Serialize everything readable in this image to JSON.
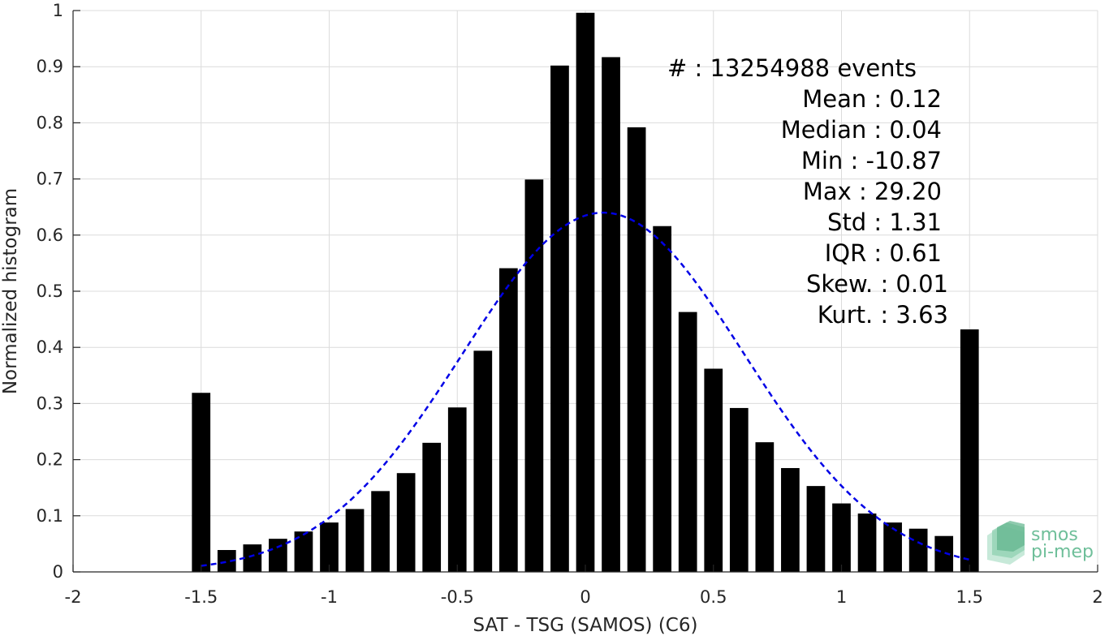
{
  "colors": {
    "bars": "#000000",
    "fit": "#0000e6",
    "grid": "#dcdcdc",
    "axis": "#262626",
    "logo": "#6fbf9a"
  },
  "chart_data": {
    "type": "bar",
    "xlabel": "SAT - TSG (SAMOS) (C6)",
    "ylabel": "Normalized histogram",
    "xlim": [
      -2,
      2
    ],
    "ylim": [
      0,
      1
    ],
    "grid": true,
    "xticks": [
      "-2",
      "-1.5",
      "-1",
      "-0.5",
      "0",
      "0.5",
      "1",
      "1.5",
      "2"
    ],
    "yticks": [
      "0",
      "0.1",
      "0.2",
      "0.3",
      "0.4",
      "0.5",
      "0.6",
      "0.7",
      "0.8",
      "0.9",
      "1"
    ],
    "x": [
      -1.5,
      -1.4,
      -1.3,
      -1.2,
      -1.1,
      -1.0,
      -0.9,
      -0.8,
      -0.7,
      -0.6,
      -0.5,
      -0.4,
      -0.3,
      -0.2,
      -0.1,
      0.0,
      0.1,
      0.2,
      0.3,
      0.4,
      0.5,
      0.6,
      0.7,
      0.8,
      0.9,
      1.0,
      1.1,
      1.2,
      1.3,
      1.4,
      1.5
    ],
    "values": [
      0.319,
      0.039,
      0.049,
      0.059,
      0.072,
      0.088,
      0.112,
      0.144,
      0.176,
      0.23,
      0.293,
      0.394,
      0.541,
      0.699,
      0.902,
      0.996,
      0.917,
      0.792,
      0.616,
      0.463,
      0.362,
      0.292,
      0.231,
      0.185,
      0.153,
      0.122,
      0.104,
      0.088,
      0.077,
      0.064,
      0.432
    ],
    "fit_curve": {
      "style": "dashed",
      "x_range": [
        -1.5,
        1.5
      ],
      "mean": 0.07,
      "sigma": 0.55,
      "peak": 0.64
    },
    "annotations": [
      "#  : 13254988 events",
      "Mean : 0.12",
      "Median : 0.04",
      "Min : -10.87",
      "Max : 29.20",
      "Std : 1.31",
      "IQR : 0.61",
      "Skew. : 0.01",
      "Kurt. : 3.63"
    ]
  },
  "logo": {
    "line1": "smos",
    "line2": "pi-mep"
  }
}
